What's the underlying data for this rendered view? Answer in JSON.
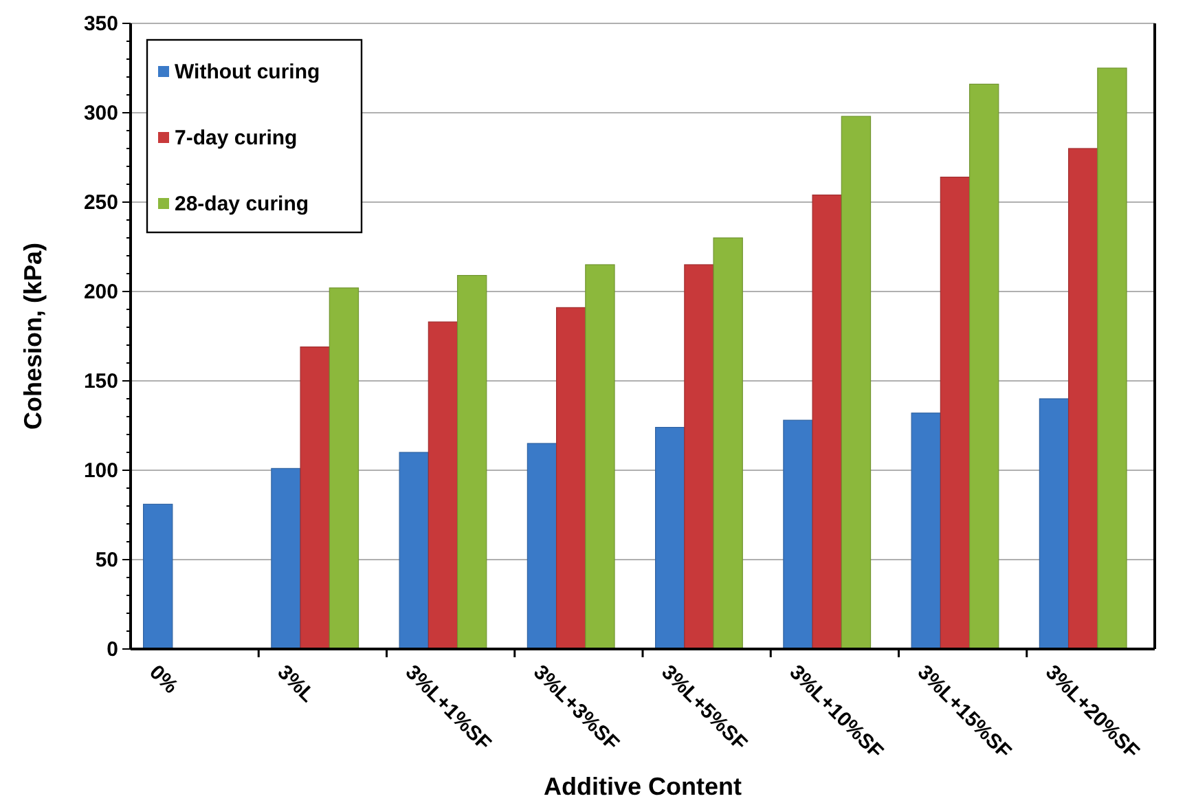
{
  "chart_data": {
    "type": "bar",
    "xlabel": "Additive Content",
    "ylabel": "Cohesion, (kPa)",
    "categories": [
      "0%",
      "3%L",
      "3%L+1%SF",
      "3%L+3%SF",
      "3%L+5%SF",
      "3%L+10%SF",
      "3%L+15%SF",
      "3%L+20%SF"
    ],
    "series": [
      {
        "name": "Without curing",
        "color": "#3a7ac8",
        "values": [
          81,
          101,
          110,
          115,
          124,
          128,
          132,
          140
        ]
      },
      {
        "name": "7-day curing",
        "color": "#c8393a",
        "values": [
          null,
          169,
          183,
          191,
          215,
          254,
          264,
          280
        ]
      },
      {
        "name": "28-day curing",
        "color": "#8cb83c",
        "values": [
          null,
          202,
          209,
          215,
          230,
          298,
          316,
          325
        ]
      }
    ],
    "ylim": [
      0,
      350
    ],
    "yticks": [
      0,
      50,
      100,
      150,
      200,
      250,
      300,
      350
    ],
    "grid": "y",
    "legend": "top left"
  }
}
